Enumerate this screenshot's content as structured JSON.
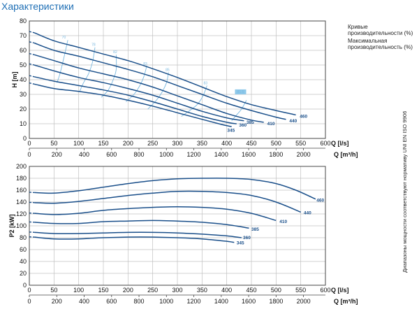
{
  "header": {
    "title": "Характеристики"
  },
  "legend": {
    "efficiency_curves": "Кривые производительности (%)",
    "max_efficiency": "Максимальная производительность (%)"
  },
  "side_note": "Диапазоны мощности соответствуют нормативу UNI EN ISO 9906",
  "colors": {
    "curve": "#1a4f8a",
    "efficiency": "#7ab8df",
    "grid": "#c0c0c0",
    "title": "#1f6fb5"
  },
  "chart_data": [
    {
      "type": "line",
      "name": "head",
      "ylabel": "H [m]",
      "xlabel": "Q [l/s]",
      "xlabel2": "Q [m³/h]",
      "xlim": [
        0,
        600
      ],
      "ylim": [
        0,
        80
      ],
      "yticks": [
        0,
        10,
        20,
        30,
        40,
        50,
        60,
        70,
        80
      ],
      "xticks": [
        0,
        50,
        100,
        150,
        200,
        250,
        300,
        350,
        400,
        450,
        500,
        550,
        600
      ],
      "xticks2": [
        0,
        200,
        400,
        600,
        800,
        1000,
        1200,
        1400,
        1600,
        1800,
        2000
      ],
      "grid": true,
      "series": [
        {
          "name": "460",
          "points": [
            [
              10,
              72
            ],
            [
              50,
              66.5
            ],
            [
              100,
              62
            ],
            [
              150,
              57.5
            ],
            [
              200,
              53
            ],
            [
              250,
              47.5
            ],
            [
              300,
              41.5
            ],
            [
              350,
              35
            ],
            [
              400,
              28.5
            ],
            [
              450,
              23
            ],
            [
              500,
              19
            ],
            [
              540,
              16
            ]
          ],
          "label_at": [
            548,
            15
          ]
        },
        {
          "name": "440",
          "points": [
            [
              10,
              65
            ],
            [
              50,
              60
            ],
            [
              100,
              56
            ],
            [
              150,
              51.5
            ],
            [
              200,
              47
            ],
            [
              250,
              42
            ],
            [
              300,
              36
            ],
            [
              350,
              30
            ],
            [
              400,
              24
            ],
            [
              450,
              19
            ],
            [
              500,
              14.5
            ],
            [
              520,
              13
            ]
          ],
          "label_at": [
            527,
            12
          ]
        },
        {
          "name": "410",
          "points": [
            [
              10,
              57
            ],
            [
              50,
              53
            ],
            [
              100,
              48
            ],
            [
              150,
              44
            ],
            [
              200,
              40
            ],
            [
              250,
              35
            ],
            [
              300,
              29
            ],
            [
              350,
              23
            ],
            [
              400,
              17
            ],
            [
              450,
              12.5
            ],
            [
              475,
              11
            ]
          ],
          "label_at": [
            482,
            10
          ]
        },
        {
          "name": "385",
          "points": [
            [
              10,
              50
            ],
            [
              50,
              46
            ],
            [
              100,
              41.5
            ],
            [
              150,
              38
            ],
            [
              200,
              34
            ],
            [
              250,
              29.5
            ],
            [
              300,
              24
            ],
            [
              350,
              18.5
            ],
            [
              400,
              14
            ],
            [
              435,
              12
            ]
          ],
          "label_at": [
            440,
            11
          ]
        },
        {
          "name": "360",
          "points": [
            [
              10,
              42
            ],
            [
              50,
              39
            ],
            [
              100,
              36
            ],
            [
              150,
              33
            ],
            [
              200,
              29.5
            ],
            [
              250,
              25
            ],
            [
              300,
              20
            ],
            [
              350,
              15
            ],
            [
              400,
              11
            ],
            [
              420,
              10
            ]
          ],
          "label_at": [
            425,
            9
          ]
        },
        {
          "name": "345",
          "points": [
            [
              10,
              37
            ],
            [
              50,
              34
            ],
            [
              100,
              32
            ],
            [
              150,
              29.5
            ],
            [
              200,
              26
            ],
            [
              250,
              22
            ],
            [
              300,
              17.5
            ],
            [
              350,
              13
            ],
            [
              390,
              9.5
            ],
            [
              410,
              8
            ]
          ],
          "label_at": [
            401,
            5.5
          ]
        }
      ],
      "efficiency_curves": [
        {
          "label": "70",
          "points": [
            [
              78,
              67
            ],
            [
              70,
              55
            ],
            [
              62,
              44
            ],
            [
              56,
              38
            ]
          ],
          "label_at": [
            70,
            68
          ]
        },
        {
          "name": "e78",
          "label": "78",
          "points": [
            [
              133,
              62
            ],
            [
              128,
              52
            ],
            [
              120,
              44
            ],
            [
              110,
              38
            ],
            [
              102,
              32
            ]
          ],
          "label_at": [
            130,
            63
          ]
        },
        {
          "label": "82",
          "points": [
            [
              176,
              57
            ],
            [
              176,
              47
            ],
            [
              170,
              40
            ],
            [
              160,
              33
            ],
            [
              146,
              28
            ]
          ],
          "label_at": [
            174,
            58
          ]
        },
        {
          "label": "83",
          "points": [
            [
              238,
              49.5
            ],
            [
              232,
              42
            ],
            [
              224,
              36
            ],
            [
              212,
              30
            ],
            [
              196,
              25
            ]
          ],
          "label_at": [
            235,
            50
          ]
        },
        {
          "label": "85",
          "points": [
            [
              282,
              45
            ],
            [
              278,
              38
            ],
            [
              268,
              31
            ],
            [
              255,
              25
            ],
            [
              240,
              20
            ]
          ],
          "label_at": [
            280,
            46
          ]
        },
        {
          "label": "83",
          "points": [
            [
              360,
              36
            ],
            [
              352,
              29
            ],
            [
              340,
              23
            ],
            [
              325,
              19
            ],
            [
              308,
              15
            ]
          ],
          "label_at": [
            357,
            37
          ]
        },
        {
          "label": "81.5",
          "points": [
            [
              440,
              26
            ],
            [
              430,
              20
            ],
            [
              420,
              16
            ],
            [
              410,
              12
            ]
          ],
          "label_at": [
            428,
            31
          ],
          "boxed": true
        }
      ]
    },
    {
      "type": "line",
      "name": "power",
      "ylabel": "P2 [kW]",
      "xlabel": "Q [l/s]",
      "xlabel2": "Q [m³/h]",
      "xlim": [
        0,
        600
      ],
      "ylim": [
        0,
        200
      ],
      "yticks": [
        0,
        20,
        40,
        60,
        80,
        100,
        120,
        140,
        160,
        180,
        200
      ],
      "xticks": [
        0,
        50,
        100,
        150,
        200,
        250,
        300,
        350,
        400,
        450,
        500,
        550,
        600
      ],
      "xticks2": [
        0,
        200,
        400,
        600,
        800,
        1000,
        1200,
        1400,
        1600,
        1800,
        2000
      ],
      "grid": true,
      "series": [
        {
          "name": "460",
          "points": [
            [
              10,
              156
            ],
            [
              50,
              155
            ],
            [
              100,
              159
            ],
            [
              150,
              165
            ],
            [
              200,
              171
            ],
            [
              250,
              176
            ],
            [
              300,
              179
            ],
            [
              350,
              180
            ],
            [
              400,
              180
            ],
            [
              450,
              178
            ],
            [
              500,
              171
            ],
            [
              540,
              160
            ],
            [
              580,
              145
            ]
          ],
          "label_at": [
            582,
            143
          ]
        },
        {
          "name": "440",
          "points": [
            [
              10,
              139
            ],
            [
              50,
              138
            ],
            [
              100,
              141
            ],
            [
              150,
              146
            ],
            [
              200,
              151
            ],
            [
              250,
              155
            ],
            [
              300,
              158
            ],
            [
              350,
              158
            ],
            [
              400,
              156
            ],
            [
              450,
              151
            ],
            [
              500,
              140
            ],
            [
              550,
              123
            ]
          ],
          "label_at": [
            556,
            122
          ]
        },
        {
          "name": "410",
          "points": [
            [
              10,
              121
            ],
            [
              50,
              119
            ],
            [
              100,
              121
            ],
            [
              150,
              126
            ],
            [
              200,
              129
            ],
            [
              250,
              131
            ],
            [
              300,
              132
            ],
            [
              350,
              131
            ],
            [
              400,
              128
            ],
            [
              450,
              121
            ],
            [
              500,
              109
            ]
          ],
          "label_at": [
            507,
            107
          ]
        },
        {
          "name": "385",
          "points": [
            [
              10,
              106
            ],
            [
              50,
              104
            ],
            [
              100,
              104
            ],
            [
              150,
              107
            ],
            [
              200,
              108
            ],
            [
              250,
              109
            ],
            [
              300,
              108
            ],
            [
              350,
              106
            ],
            [
              400,
              102
            ],
            [
              445,
              96
            ]
          ],
          "label_at": [
            450,
            94
          ]
        },
        {
          "name": "360",
          "points": [
            [
              10,
              89
            ],
            [
              50,
              87
            ],
            [
              100,
              87
            ],
            [
              150,
              88
            ],
            [
              200,
              89
            ],
            [
              250,
              89
            ],
            [
              300,
              88
            ],
            [
              350,
              86
            ],
            [
              400,
              83
            ],
            [
              430,
              80
            ]
          ],
          "label_at": [
            433,
            80
          ]
        },
        {
          "name": "345",
          "points": [
            [
              10,
              81
            ],
            [
              50,
              78
            ],
            [
              100,
              78
            ],
            [
              150,
              80
            ],
            [
              200,
              81
            ],
            [
              250,
              81
            ],
            [
              300,
              80
            ],
            [
              350,
              78
            ],
            [
              400,
              74
            ],
            [
              415,
              72
            ]
          ],
          "label_at": [
            420,
            71
          ]
        }
      ]
    }
  ]
}
